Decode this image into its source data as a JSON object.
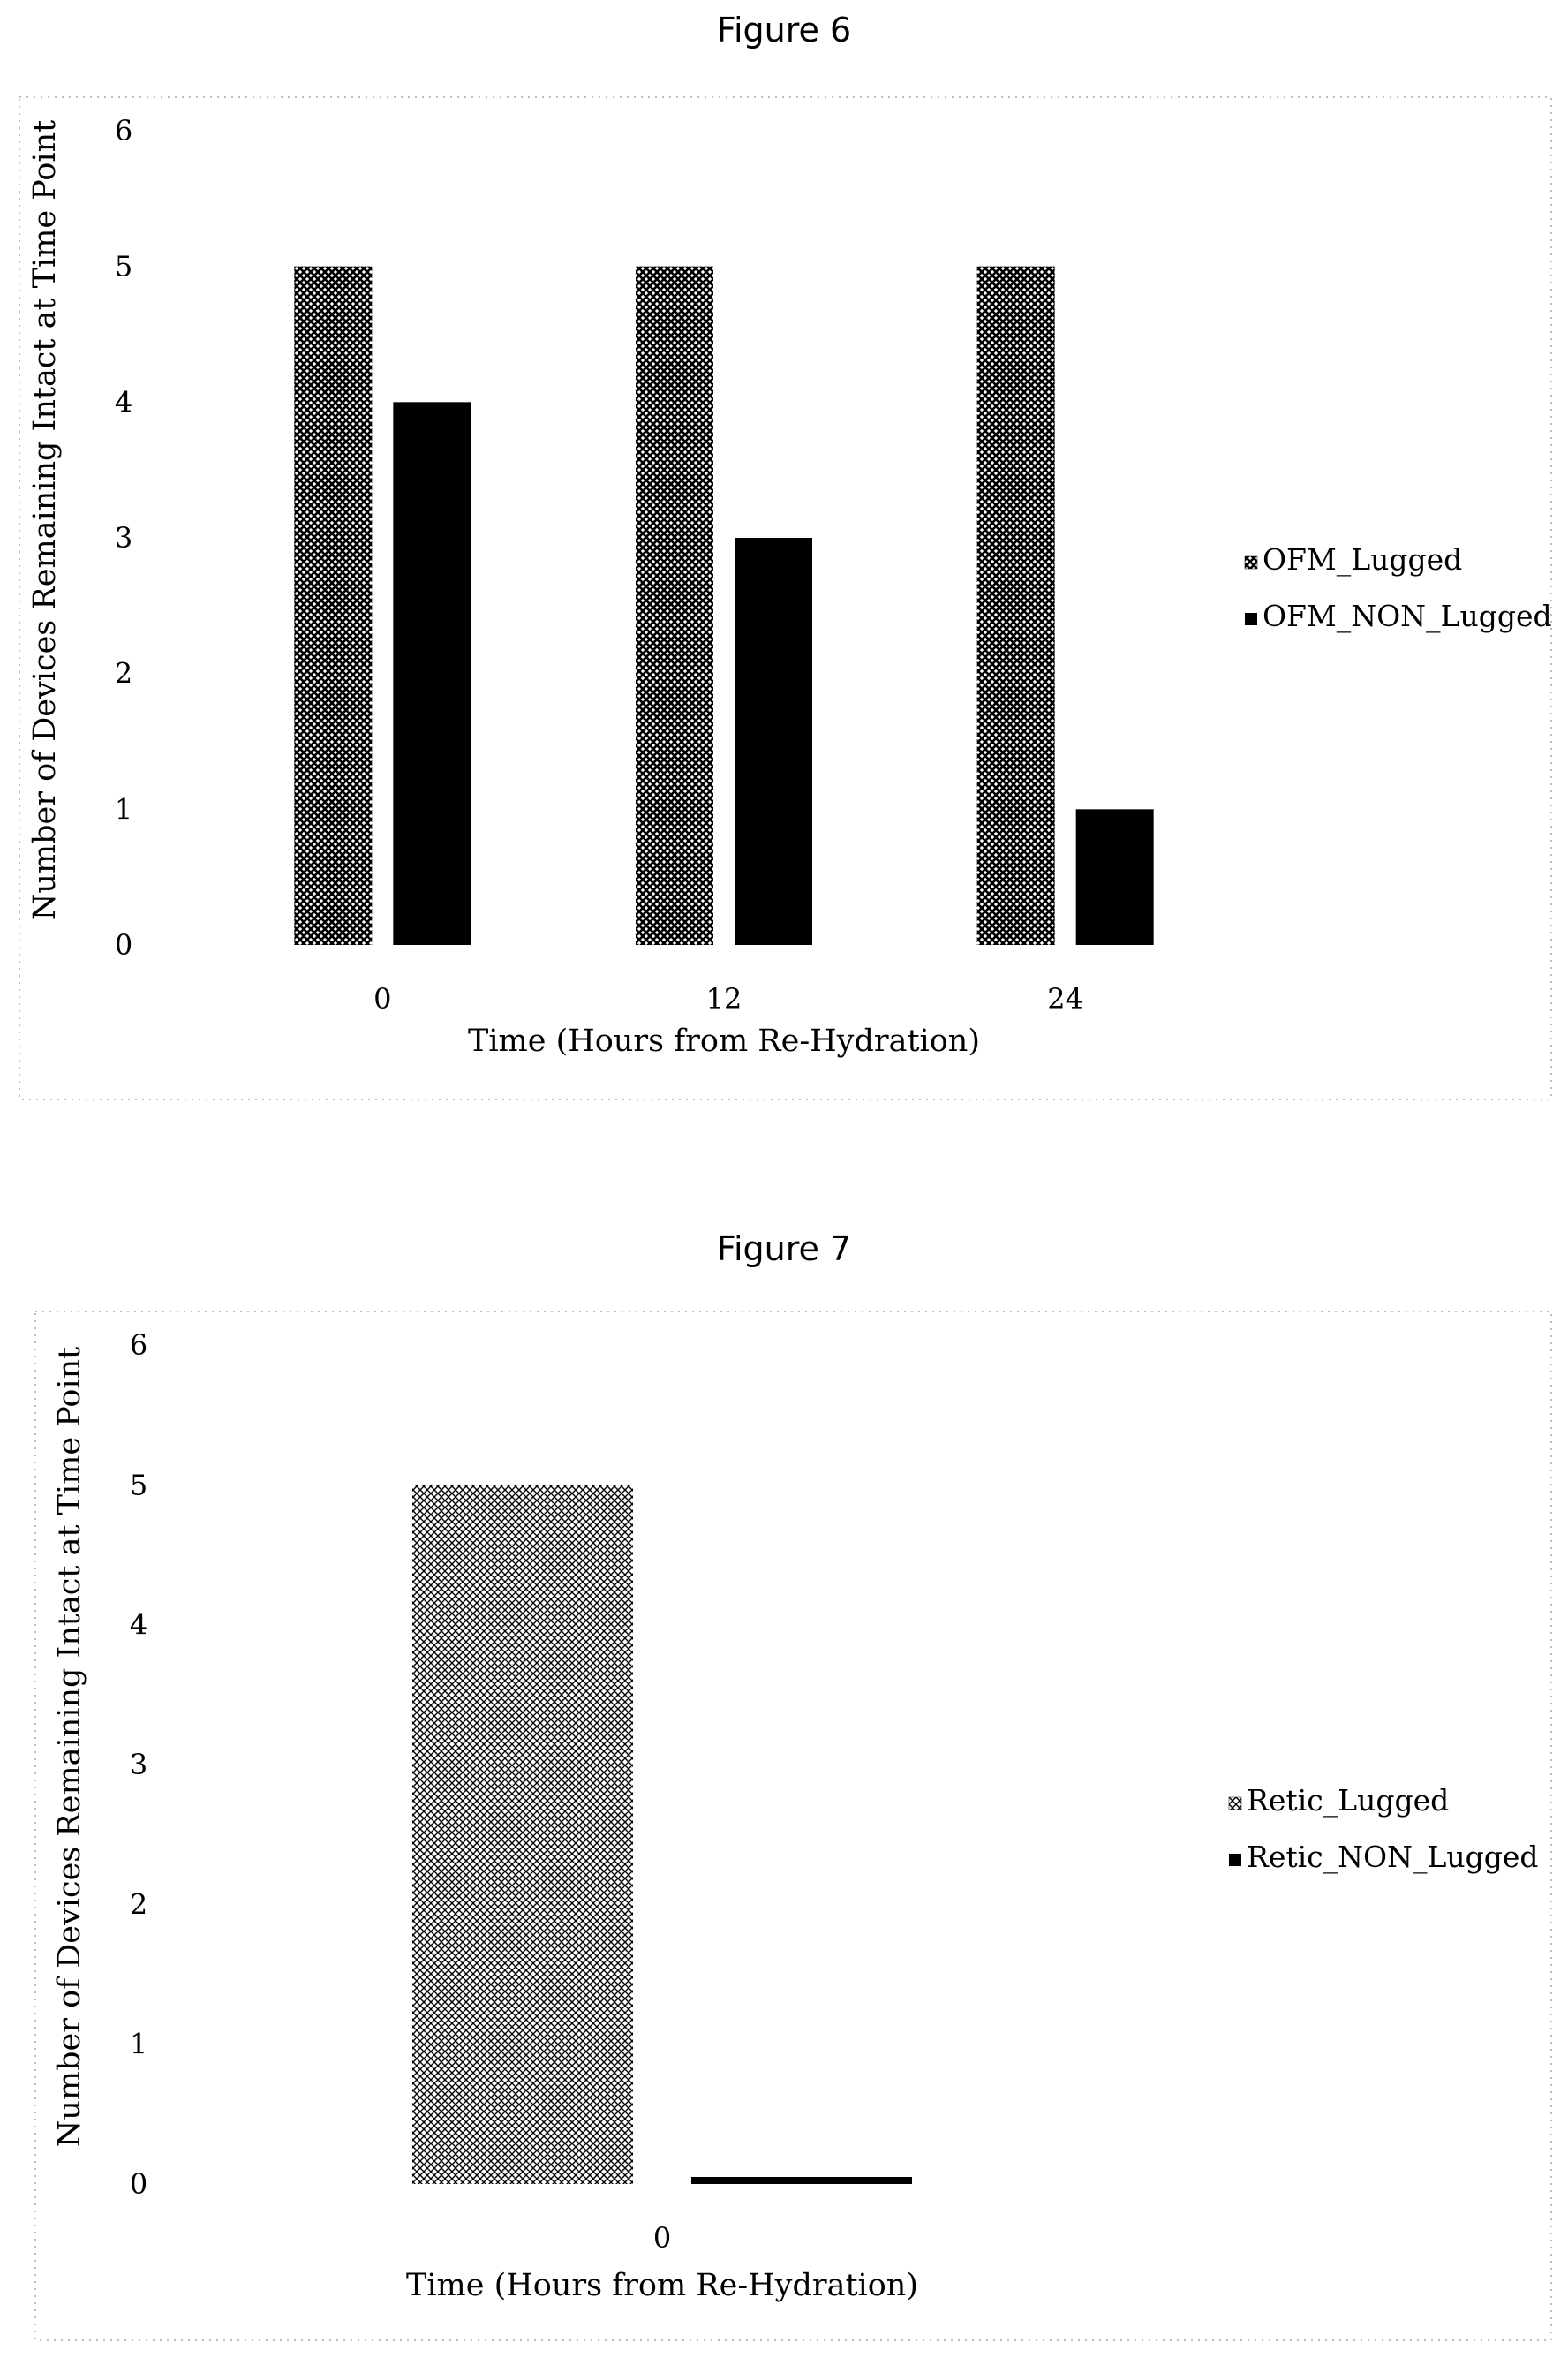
{
  "figures": [
    {
      "title": "Figure 6"
    },
    {
      "title": "Figure 7"
    }
  ],
  "chart_data": [
    {
      "type": "bar",
      "title": "",
      "categories": [
        "0",
        "12",
        "24"
      ],
      "series": [
        {
          "name": "OFM_Lugged",
          "values": [
            5,
            5,
            5
          ],
          "fill": "dense-crosshatch"
        },
        {
          "name": "OFM_NON_Lugged",
          "values": [
            4,
            3,
            1
          ],
          "fill": "solid-black"
        }
      ],
      "xlabel": "Time (Hours from Re-Hydration)",
      "ylabel": "Number of Devices Remaining Intact at Time Point",
      "ylim": [
        0,
        6
      ],
      "yticks": [
        "0",
        "1",
        "2",
        "3",
        "4",
        "5",
        "6"
      ],
      "grid": false,
      "legend_position": "right",
      "colors": {
        "bar": "#000000",
        "pattern_bg": "#ffffff"
      }
    },
    {
      "type": "bar",
      "title": "",
      "categories": [
        "0"
      ],
      "series": [
        {
          "name": "Retic_Lugged",
          "values": [
            5
          ],
          "fill": "fine-crosshatch"
        },
        {
          "name": "Retic_NON_Lugged",
          "values": [
            0
          ],
          "fill": "solid-black"
        }
      ],
      "xlabel": "Time (Hours from Re-Hydration)",
      "ylabel": "Number of Devices Remaining Intact at Time Point",
      "ylim": [
        0,
        6
      ],
      "yticks": [
        "0",
        "1",
        "2",
        "3",
        "4",
        "5",
        "6"
      ],
      "grid": false,
      "legend_position": "right",
      "colors": {
        "bar": "#000000",
        "pattern_bg": "#ffffff"
      }
    }
  ]
}
